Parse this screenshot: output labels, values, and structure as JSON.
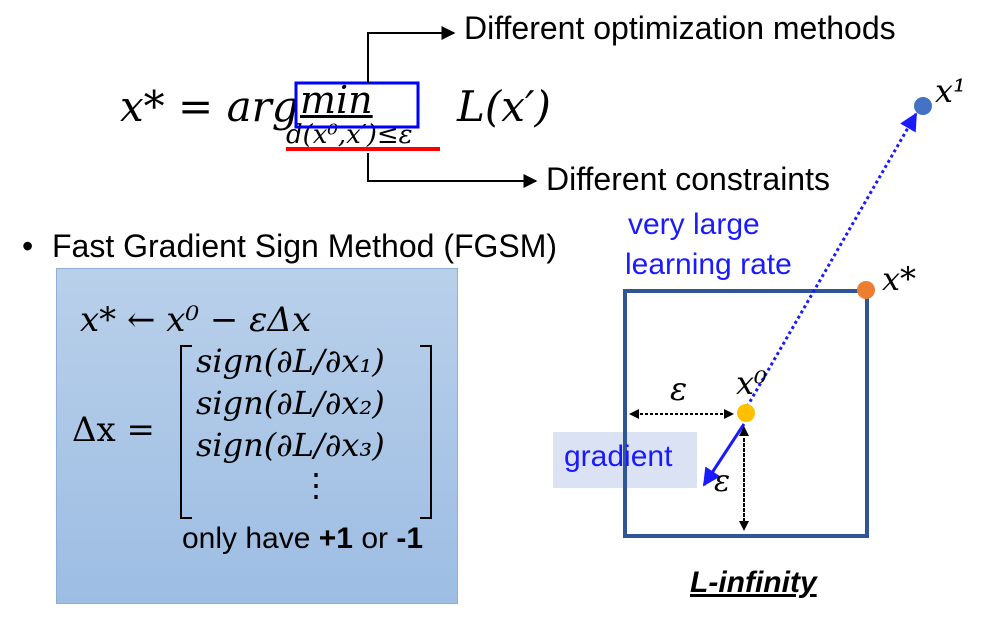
{
  "formula": {
    "lhs": "x* = arg",
    "op": "min",
    "constraint": "d(x⁰,x′)≤ε",
    "objective": "L(x′)"
  },
  "annotations": {
    "optimization": "Different optimization methods",
    "constraints": "Different constraints"
  },
  "bullet": "Fast Gradient Sign Method (FGSM)",
  "fgsm": {
    "update": "x* ← x⁰ − εΔx",
    "delta_lhs": "Δx =",
    "rows": [
      "sign(∂L/∂x₁)",
      "sign(∂L/∂x₂)",
      "sign(∂L/∂x₃)",
      "⋮"
    ],
    "note_prefix": "only have ",
    "plus": "+1",
    "or": " or ",
    "minus": "-1"
  },
  "diagram": {
    "lr_line1": "very large",
    "lr_line2": "learning rate",
    "gradient": "gradient",
    "x1": "x¹",
    "xstar": "x*",
    "x0": "x⁰",
    "eps_left": "ε",
    "eps_down": "ε",
    "title": "L-infinity"
  },
  "colors": {
    "blue_text": "#1a1aff",
    "dot_blue": "#4472c4",
    "dot_orange": "#ed7d31",
    "dot_yellow": "#ffc000",
    "square": "#2f5597",
    "red": "#ff0000",
    "highlight": "#0000ff"
  }
}
